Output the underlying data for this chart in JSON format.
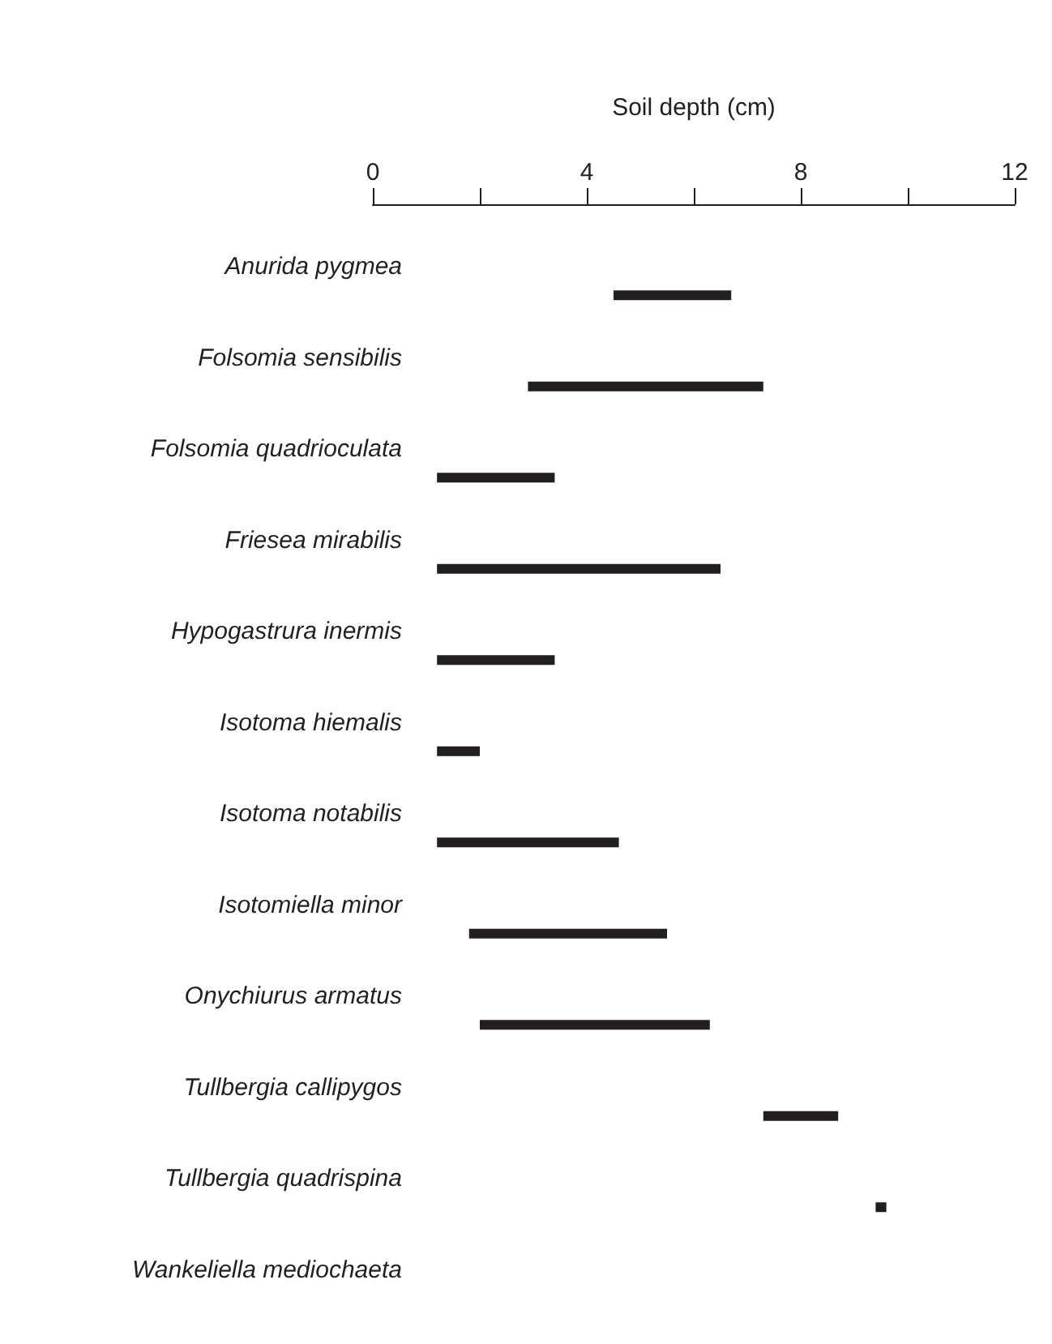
{
  "chart_data": {
    "type": "bar",
    "orientation": "horizontal",
    "xlabel": "Soil depth (cm)",
    "categories": [
      "Anurida pygmea",
      "Folsomia sensibilis",
      "Folsomia quadrioculata",
      "Friesea mirabilis",
      "Hypogastrura inermis",
      "Isotoma hiemalis",
      "Isotoma notabilis",
      "Isotomiella minor",
      "Onychiurus armatus",
      "Tullbergia callipygos",
      "Tullbergia quadrispina",
      "Wankeliella mediochaeta"
    ],
    "base": [
      4.5,
      2.9,
      1.2,
      1.2,
      1.2,
      1.2,
      1.2,
      1.8,
      2.0,
      7.3,
      9.4,
      null
    ],
    "values": [
      2.2,
      4.4,
      2.2,
      5.3,
      2.2,
      0.8,
      3.4,
      3.7,
      4.3,
      1.4,
      0.2,
      null
    ],
    "color": "#231f20",
    "xlim": [
      0,
      12
    ],
    "xticks": [
      0,
      {
        "value": 2,
        "label": null
      },
      4,
      {
        "value": 6,
        "label": null
      },
      8,
      {
        "value": 10,
        "label": null
      },
      12
    ]
  }
}
